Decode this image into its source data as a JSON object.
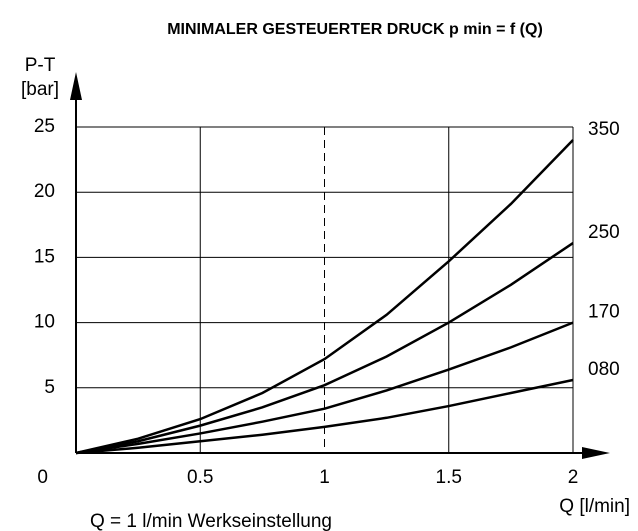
{
  "chart_data": {
    "type": "line",
    "title": "MINIMALER GESTEUERTER DRUCK p min = f (Q)",
    "y_label": [
      "P-T",
      "[bar]"
    ],
    "x_label": "Q [l/min]",
    "annotation": "Q = 1 l/min Werkseinstellung",
    "dashed_x": 1,
    "x": [
      0,
      0.25,
      0.5,
      0.75,
      1,
      1.25,
      1.5,
      1.75,
      2
    ],
    "series": [
      {
        "name": "350",
        "color": "#000000",
        "values": [
          0,
          1.1,
          2.6,
          4.6,
          7.2,
          10.6,
          14.7,
          19.1,
          24
        ]
      },
      {
        "name": "250",
        "color": "#000000",
        "values": [
          0,
          0.9,
          2.1,
          3.5,
          5.2,
          7.4,
          10,
          12.9,
          16.1
        ]
      },
      {
        "name": "170",
        "color": "#000000",
        "values": [
          0,
          0.7,
          1.5,
          2.4,
          3.4,
          4.8,
          6.4,
          8.1,
          10
        ]
      },
      {
        "name": "080",
        "color": "#000000",
        "values": [
          0,
          0.4,
          0.9,
          1.4,
          2,
          2.7,
          3.6,
          4.6,
          5.6
        ]
      }
    ],
    "xlim": [
      0,
      2
    ],
    "xticks": [
      0,
      0.5,
      1,
      1.5,
      2
    ],
    "ylim": [
      0,
      25
    ],
    "yticks": [
      0,
      5,
      10,
      15,
      20,
      25
    ],
    "grid": true
  }
}
